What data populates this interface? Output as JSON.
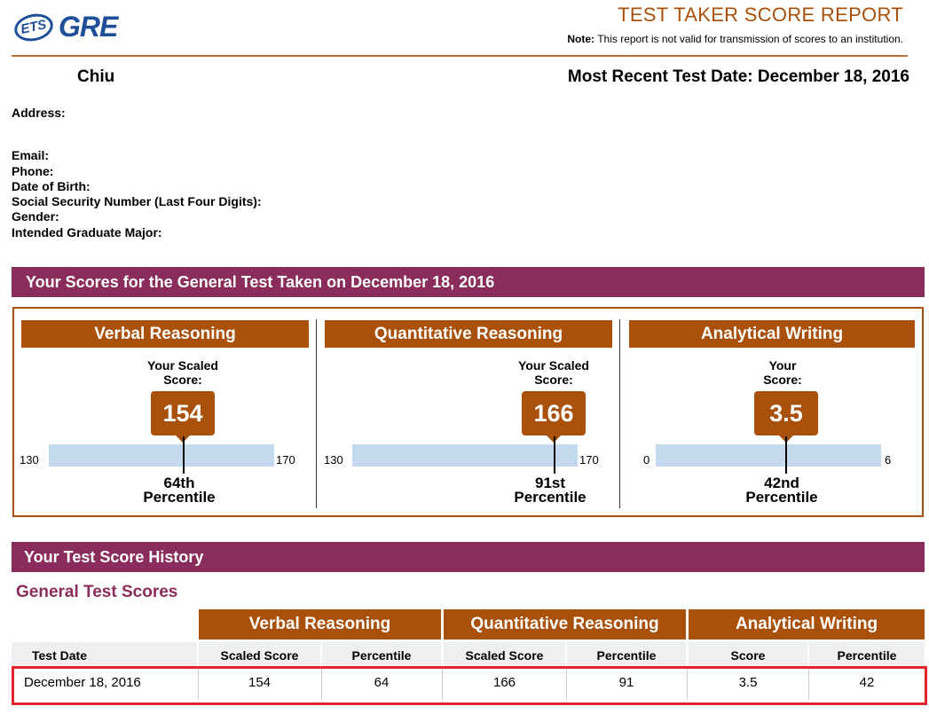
{
  "header": {
    "logo_ets": "ETS",
    "logo_gre": "GRE",
    "title": "TEST TAKER SCORE REPORT",
    "note_label": "Note:",
    "note_text": "This report is not valid for transmission of scores to an institution."
  },
  "candidate": {
    "name": "Chiu",
    "recent_test_date": "Most Recent Test Date: December 18, 2016"
  },
  "info_labels": {
    "address": "Address:",
    "email": "Email:",
    "phone": "Phone:",
    "dob": "Date of Birth:",
    "ssn": "Social Security Number (Last Four Digits):",
    "gender": "Gender:",
    "major": "Intended Graduate Major:"
  },
  "scores_section": {
    "title": "Your Scores for the General Test Taken on December 18, 2016",
    "panels": [
      {
        "name": "Verbal Reasoning",
        "score_label_line1": "Your Scaled",
        "score_label_line2": "Score:",
        "score": "154",
        "scale_min": "130",
        "scale_max": "170",
        "percentile_line1": "64th",
        "percentile_line2": "Percentile"
      },
      {
        "name": "Quantitative Reasoning",
        "score_label_line1": "Your Scaled",
        "score_label_line2": "Score:",
        "score": "166",
        "scale_min": "130",
        "scale_max": "170",
        "percentile_line1": "91st",
        "percentile_line2": "Percentile"
      },
      {
        "name": "Analytical Writing",
        "score_label_line1": "Your",
        "score_label_line2": "Score:",
        "score": "3.5",
        "scale_min": "0",
        "scale_max": "6",
        "percentile_line1": "42nd",
        "percentile_line2": "Percentile"
      }
    ]
  },
  "history": {
    "title": "Your Test Score History",
    "subtitle": "General Test Scores",
    "groups": [
      "Verbal Reasoning",
      "Quantitative Reasoning",
      "Analytical Writing"
    ],
    "columns": [
      "Test Date",
      "Scaled Score",
      "Percentile",
      "Scaled Score",
      "Percentile",
      "Score",
      "Percentile"
    ],
    "rows": [
      [
        "December 18, 2016",
        "154",
        "64",
        "166",
        "91",
        "3.5",
        "42"
      ]
    ]
  }
}
